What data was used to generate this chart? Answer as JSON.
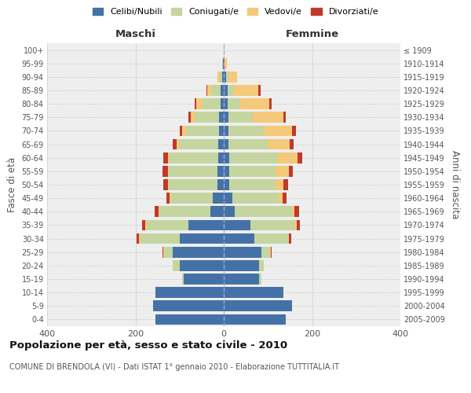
{
  "age_groups": [
    "0-4",
    "5-9",
    "10-14",
    "15-19",
    "20-24",
    "25-29",
    "30-34",
    "35-39",
    "40-44",
    "45-49",
    "50-54",
    "55-59",
    "60-64",
    "65-69",
    "70-74",
    "75-79",
    "80-84",
    "85-89",
    "90-94",
    "95-99",
    "100+"
  ],
  "birth_years": [
    "2005-2009",
    "2000-2004",
    "1995-1999",
    "1990-1994",
    "1985-1989",
    "1980-1984",
    "1975-1979",
    "1970-1974",
    "1965-1969",
    "1960-1964",
    "1955-1959",
    "1950-1954",
    "1945-1949",
    "1940-1944",
    "1935-1939",
    "1930-1934",
    "1925-1929",
    "1920-1924",
    "1915-1919",
    "1910-1914",
    "≤ 1909"
  ],
  "maschi": {
    "celibi": [
      155,
      160,
      155,
      90,
      100,
      115,
      100,
      80,
      30,
      25,
      15,
      14,
      12,
      12,
      10,
      10,
      8,
      8,
      4,
      2,
      0
    ],
    "coniugati": [
      0,
      0,
      0,
      5,
      15,
      20,
      90,
      95,
      115,
      95,
      110,
      110,
      110,
      90,
      75,
      55,
      40,
      20,
      5,
      0,
      0
    ],
    "vedovi": [
      0,
      0,
      0,
      0,
      0,
      2,
      2,
      2,
      2,
      2,
      2,
      2,
      5,
      5,
      10,
      10,
      15,
      10,
      5,
      2,
      0
    ],
    "divorziati": [
      0,
      0,
      0,
      0,
      0,
      2,
      5,
      8,
      10,
      8,
      10,
      12,
      10,
      8,
      5,
      5,
      2,
      2,
      0,
      0,
      0
    ]
  },
  "femmine": {
    "nubili": [
      140,
      155,
      135,
      80,
      80,
      85,
      70,
      60,
      25,
      20,
      12,
      12,
      12,
      10,
      10,
      10,
      8,
      8,
      5,
      2,
      0
    ],
    "coniugate": [
      0,
      0,
      0,
      5,
      10,
      20,
      75,
      100,
      130,
      105,
      105,
      105,
      110,
      90,
      80,
      55,
      30,
      15,
      5,
      0,
      0
    ],
    "vedove": [
      0,
      0,
      0,
      0,
      0,
      2,
      2,
      5,
      5,
      8,
      18,
      30,
      45,
      50,
      65,
      70,
      65,
      55,
      20,
      5,
      0
    ],
    "divorziate": [
      0,
      0,
      0,
      0,
      0,
      2,
      5,
      8,
      10,
      10,
      10,
      10,
      10,
      8,
      8,
      5,
      5,
      5,
      0,
      0,
      0
    ]
  },
  "colors": {
    "celibi": "#4472a8",
    "coniugati": "#c5d5a0",
    "vedovi": "#f5c97a",
    "divorziati": "#c0392b"
  },
  "xlim": 400,
  "title": "Popolazione per età, sesso e stato civile - 2010",
  "subtitle": "COMUNE DI BRENDOLA (VI) - Dati ISTAT 1° gennaio 2010 - Elaborazione TUTTITALIA.IT",
  "xlabel_left": "Maschi",
  "xlabel_right": "Femmine",
  "ylabel_left": "Fasce di età",
  "ylabel_right": "Anni di nascita",
  "legend_labels": [
    "Celibi/Nubili",
    "Coniugati/e",
    "Vedovi/e",
    "Divorziati/e"
  ],
  "bg_color": "#ffffff",
  "plot_bg": "#eeeeee",
  "grid_color": "#ffffff"
}
